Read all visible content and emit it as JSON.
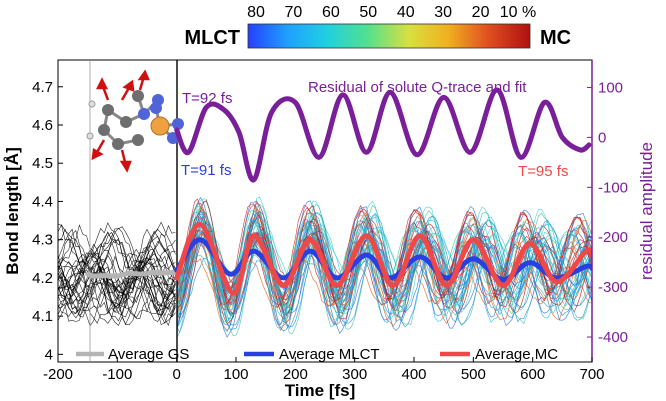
{
  "chart_data": {
    "type": "line",
    "colorbar": {
      "ticks": [
        "80",
        "70",
        "60",
        "50",
        "40",
        "30",
        "20",
        "10 %"
      ],
      "left_label": "MLCT",
      "right_label": "MC",
      "colors": [
        "#2540ff",
        "#1fa0ff",
        "#20d0e0",
        "#50e090",
        "#d8e040",
        "#f0b020",
        "#e05020",
        "#b01010"
      ]
    },
    "left_axis": {
      "label": "Bond length [Å]",
      "ylim": [
        3.98,
        4.77
      ],
      "ticks": [
        4,
        4.1,
        4.2,
        4.3,
        4.4,
        4.5,
        4.6,
        4.7
      ],
      "tick_labels": [
        "4",
        "4.1",
        "4.2",
        "4.3",
        "4.4",
        "4.5",
        "4.6",
        "4.7"
      ]
    },
    "right_axis": {
      "label": "residual amplitude",
      "ylim": [
        -450,
        155
      ],
      "ticks": [
        100,
        0,
        -100,
        -200,
        -300,
        -400
      ],
      "tick_labels": [
        "100",
        "0",
        "-100",
        "-200",
        "-300",
        "-400"
      ]
    },
    "x_axis": {
      "label": "Time [fs]",
      "xlim": [
        -200,
        700
      ],
      "ticks": [
        -200,
        -100,
        0,
        100,
        200,
        300,
        400,
        500,
        600,
        700
      ],
      "tick_labels": [
        "-200",
        "-100",
        "0",
        "100",
        "200",
        "300",
        "400",
        "500",
        "600",
        "700"
      ]
    },
    "annotations": {
      "t92": "T=92 fs",
      "t91": "T=91 fs",
      "t95": "T=95 fs",
      "residual_title": "Residual of solute Q-trace and fit"
    },
    "legend": {
      "gs": "Average GS",
      "mlct": "Average MLCT",
      "mc": "Average MC"
    },
    "colors": {
      "gs": "#b4b4b4",
      "mlct": "#2a3fe0",
      "mc": "#f04848",
      "residual": "#7a1f9a",
      "spaghetti_gs": "#000000",
      "spaghetti_mlct": "#2aa8e0",
      "spaghetti_mc": "#c01818"
    },
    "average_gs": {
      "x": [
        -150,
        -140,
        -120,
        -100,
        -80,
        -60,
        -40,
        -20,
        0
      ],
      "y": [
        4.21,
        4.205,
        4.206,
        4.205,
        4.212,
        4.21,
        4.214,
        4.213,
        4.215
      ]
    },
    "average_mlct": {
      "x": [
        0,
        40,
        90,
        130,
        180,
        225,
        270,
        320,
        360,
        410,
        455,
        500,
        550,
        595,
        640,
        690,
        700
      ],
      "y": [
        4.22,
        4.3,
        4.21,
        4.27,
        4.2,
        4.27,
        4.2,
        4.26,
        4.2,
        4.255,
        4.2,
        4.25,
        4.195,
        4.24,
        4.2,
        4.23,
        4.225
      ]
    },
    "average_mc": {
      "x": [
        0,
        40,
        95,
        130,
        180,
        225,
        270,
        320,
        365,
        410,
        455,
        500,
        550,
        595,
        640,
        690,
        700
      ],
      "y": [
        4.2,
        4.34,
        4.16,
        4.31,
        4.18,
        4.3,
        4.18,
        4.31,
        4.18,
        4.31,
        4.18,
        4.3,
        4.18,
        4.29,
        4.19,
        4.27,
        4.26
      ]
    },
    "residual": {
      "x": [
        0,
        20,
        50,
        80,
        105,
        130,
        160,
        200,
        240,
        280,
        320,
        360,
        405,
        450,
        495,
        540,
        580,
        620,
        650,
        680,
        695
      ],
      "y": [
        15,
        -30,
        60,
        55,
        10,
        -85,
        50,
        70,
        -40,
        85,
        -30,
        90,
        -35,
        80,
        -30,
        95,
        -40,
        70,
        0,
        -25,
        -15
      ]
    }
  }
}
